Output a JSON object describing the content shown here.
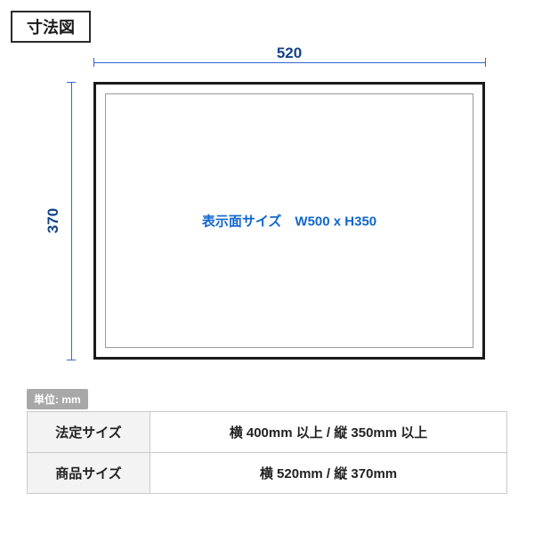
{
  "title": "寸法図",
  "diagram": {
    "width_label": "520",
    "height_label": "370",
    "display_text": "表示面サイズ　W500 x H350",
    "outer_w_mm": 520,
    "outer_h_mm": 370,
    "colors": {
      "dim_line": "#3366cc",
      "dim_text": "#114488",
      "frame": "#1a1a1a",
      "inner_frame": "#999999",
      "display_text": "#1166cc"
    }
  },
  "unit_badge": "単位: mm",
  "table": {
    "rows": [
      {
        "head": "法定サイズ",
        "value": "横 400mm 以上  /  縦 350mm 以上"
      },
      {
        "head": "商品サイズ",
        "value": "横 520mm  /  縦 370mm"
      }
    ]
  }
}
